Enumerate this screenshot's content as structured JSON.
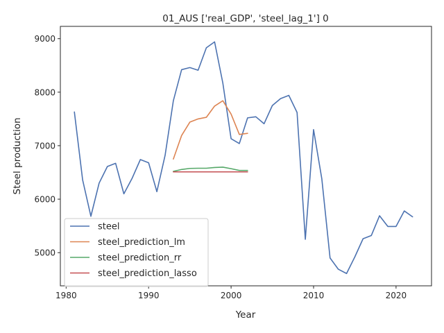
{
  "chart_data": {
    "type": "line",
    "title": "01_AUS ['real_GDP', 'steel_lag_1'] 0",
    "xlabel": "Year",
    "ylabel": "Steel production",
    "xlim": [
      1979.3,
      2024.3
    ],
    "ylim": [
      4380,
      9230
    ],
    "xticks": [
      1980,
      1990,
      2000,
      2010,
      2020
    ],
    "yticks": [
      5000,
      6000,
      7000,
      8000,
      9000
    ],
    "grid": false,
    "legend_position": "lower-left",
    "series": [
      {
        "name": "steel",
        "color": "#4c72b0",
        "x": [
          1981,
          1982,
          1983,
          1984,
          1985,
          1986,
          1987,
          1988,
          1989,
          1990,
          1991,
          1992,
          1993,
          1994,
          1995,
          1996,
          1997,
          1998,
          1999,
          2000,
          2001,
          2002,
          2003,
          2004,
          2005,
          2006,
          2007,
          2008,
          2009,
          2010,
          2011,
          2012,
          2013,
          2014,
          2015,
          2016,
          2017,
          2018,
          2019,
          2020,
          2021,
          2022
        ],
        "y": [
          7630,
          6360,
          5680,
          6300,
          6610,
          6670,
          6100,
          6390,
          6740,
          6680,
          6140,
          6820,
          7840,
          8420,
          8460,
          8410,
          8830,
          8940,
          8170,
          7130,
          7040,
          7520,
          7540,
          7410,
          7750,
          7880,
          7940,
          7620,
          5250,
          7300,
          6380,
          4900,
          4690,
          4610,
          4920,
          5260,
          5320,
          5690,
          5490,
          5490,
          5780,
          5670
        ]
      },
      {
        "name": "steel_prediction_lm",
        "color": "#dd8452",
        "x": [
          1993,
          1994,
          1995,
          1996,
          1997,
          1998,
          1999,
          2000,
          2001,
          2002
        ],
        "y": [
          6750,
          7190,
          7440,
          7500,
          7530,
          7740,
          7840,
          7590,
          7210,
          7230
        ]
      },
      {
        "name": "steel_prediction_rr",
        "color": "#55a868",
        "x": [
          1993,
          1994,
          1995,
          1996,
          1997,
          1998,
          1999,
          2000,
          2001,
          2002
        ],
        "y": [
          6520,
          6555,
          6575,
          6578,
          6578,
          6592,
          6598,
          6570,
          6537,
          6537
        ]
      },
      {
        "name": "steel_prediction_lasso",
        "color": "#c44e52",
        "x": [
          1993,
          1994,
          1995,
          1996,
          1997,
          1998,
          1999,
          2000,
          2001,
          2002
        ],
        "y": [
          6510,
          6510,
          6510,
          6510,
          6510,
          6510,
          6510,
          6510,
          6510,
          6510
        ]
      }
    ]
  }
}
